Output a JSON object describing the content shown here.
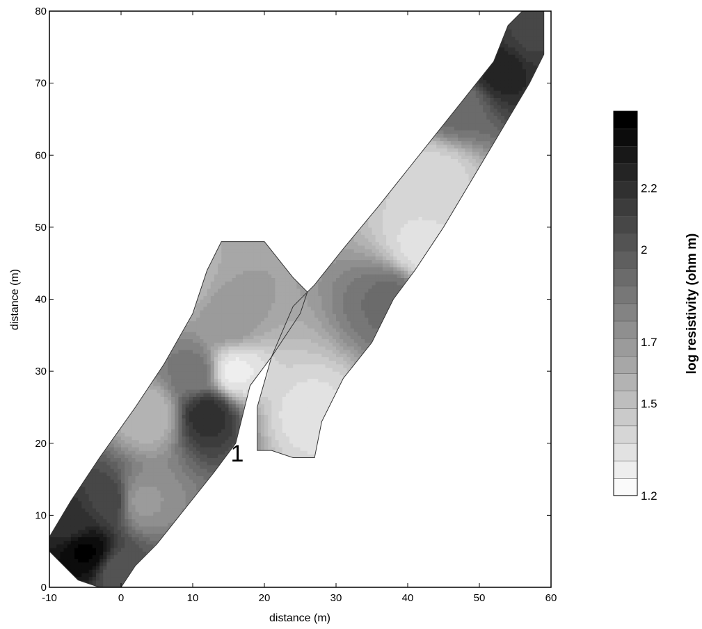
{
  "chart_data": {
    "type": "heatmap",
    "title": "",
    "xlabel": "distance (m)",
    "ylabel": "distance (m)",
    "xlim": [
      -10,
      60
    ],
    "ylim": [
      0,
      80
    ],
    "x_ticks": [
      "-10",
      "0",
      "10",
      "20",
      "30",
      "40",
      "50",
      "60"
    ],
    "y_ticks": [
      "0",
      "10",
      "20",
      "30",
      "40",
      "50",
      "60",
      "70",
      "80"
    ],
    "grid": false,
    "annotation": "1",
    "colorbar": {
      "label": "log resistivity (ohm m)",
      "tick_labels": [
        "1.2",
        "1.5",
        "1.7",
        "2",
        "2.2"
      ],
      "tick_values": [
        1.2,
        1.5,
        1.7,
        2.0,
        2.2
      ],
      "range": [
        1.2,
        2.45
      ],
      "colormap": "grayscale",
      "low_color": "#ffffff",
      "high_color": "#000000",
      "placement": "right"
    },
    "zones": [
      {
        "x": -5,
        "y": 5,
        "value": 2.4
      },
      {
        "x": -7,
        "y": 9,
        "value": 2.2
      },
      {
        "x": -2,
        "y": 12,
        "value": 2.1
      },
      {
        "x": 0,
        "y": 2,
        "value": 2.0
      },
      {
        "x": 12,
        "y": 24,
        "value": 2.2
      },
      {
        "x": 10,
        "y": 30,
        "value": 1.85
      },
      {
        "x": 16,
        "y": 30,
        "value": 1.3
      },
      {
        "x": 15,
        "y": 37,
        "value": 1.7
      },
      {
        "x": 4,
        "y": 24,
        "value": 1.55
      },
      {
        "x": 8,
        "y": 42,
        "value": 1.55
      },
      {
        "x": 3,
        "y": 12,
        "value": 1.7
      },
      {
        "x": 26,
        "y": 24,
        "value": 1.35
      },
      {
        "x": 38,
        "y": 40,
        "value": 1.9
      },
      {
        "x": 42,
        "y": 47,
        "value": 1.35
      },
      {
        "x": 44,
        "y": 57,
        "value": 1.4
      },
      {
        "x": 47,
        "y": 67,
        "value": 1.9
      },
      {
        "x": 53,
        "y": 72,
        "value": 2.25
      },
      {
        "x": 57,
        "y": 77,
        "value": 2.1
      }
    ]
  }
}
